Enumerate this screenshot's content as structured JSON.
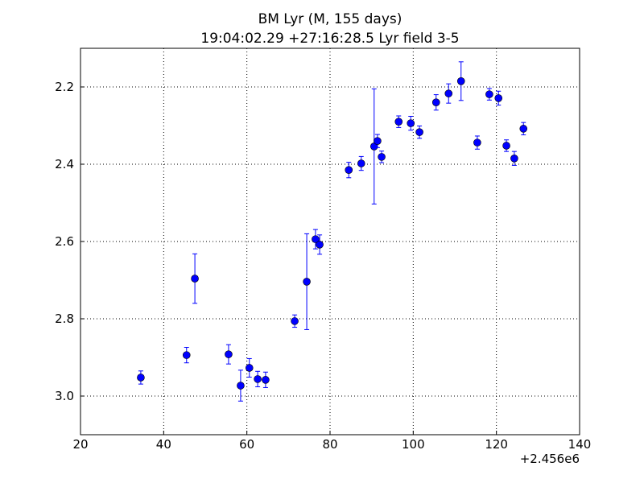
{
  "chart_data": {
    "type": "scatter",
    "title": "BM Lyr (M, 155 days)",
    "subtitle": "19:04:02.29 +27:16:28.5 Lyr field 3-5",
    "x_offset_label": "+2.456e6",
    "color": "#0000ff",
    "x": [
      34.5,
      45.5,
      47.5,
      55.6,
      58.5,
      60.6,
      62.6,
      64.5,
      71.5,
      74.4,
      76.5,
      77.5,
      84.5,
      87.5,
      90.6,
      91.4,
      92.4,
      96.5,
      99.4,
      101.5,
      105.5,
      108.5,
      111.5,
      115.4,
      118.3,
      120.5,
      122.4,
      124.3,
      126.5
    ],
    "values": [
      2.952,
      2.894,
      2.696,
      2.892,
      2.973,
      2.927,
      2.956,
      2.958,
      2.806,
      2.704,
      2.594,
      2.608,
      2.415,
      2.398,
      2.354,
      2.34,
      2.381,
      2.29,
      2.294,
      2.317,
      2.24,
      2.217,
      2.185,
      2.344,
      2.219,
      2.229,
      2.352,
      2.385,
      2.308
    ],
    "errors": [
      0.017,
      0.02,
      0.064,
      0.025,
      0.04,
      0.024,
      0.02,
      0.02,
      0.016,
      0.124,
      0.025,
      0.025,
      0.02,
      0.018,
      0.149,
      0.017,
      0.015,
      0.015,
      0.018,
      0.016,
      0.02,
      0.025,
      0.05,
      0.017,
      0.015,
      0.018,
      0.015,
      0.018,
      0.016
    ],
    "xlim": [
      20,
      140
    ],
    "xticks": [
      20,
      40,
      60,
      80,
      100,
      120,
      140
    ],
    "ylim": [
      2.1,
      3.1
    ],
    "y_inverted": true,
    "yticks": [
      2.2,
      2.4,
      2.6,
      2.8,
      {
        "value": 3,
        "label": "3.0"
      }
    ],
    "grid": true
  }
}
